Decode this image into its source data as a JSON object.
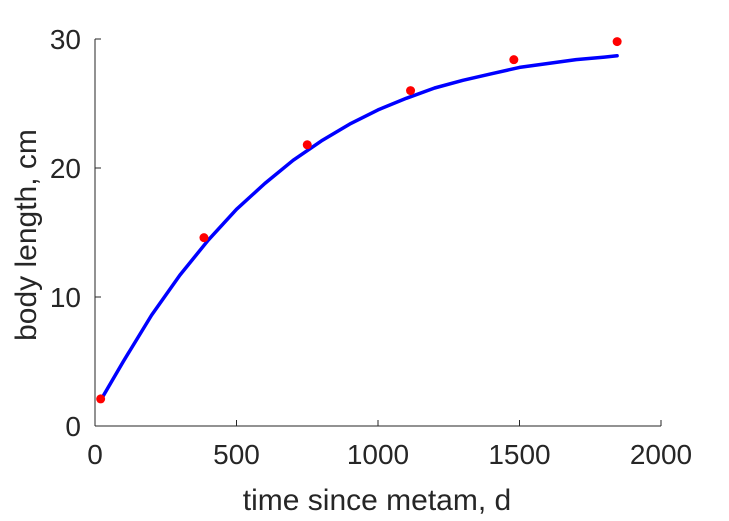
{
  "chart_data": {
    "type": "scatter",
    "xlabel": "time since metam, d",
    "ylabel": "body length, cm",
    "xlim": [
      0,
      2000
    ],
    "ylim": [
      0,
      30
    ],
    "xticks": [
      0,
      500,
      1000,
      1500,
      2000
    ],
    "yticks": [
      0,
      10,
      20,
      30
    ],
    "grid": false,
    "series": [
      {
        "kind": "points",
        "color": "#ff0000",
        "points": [
          {
            "x": 20,
            "y": 2.1
          },
          {
            "x": 385,
            "y": 14.6
          },
          {
            "x": 750,
            "y": 21.8
          },
          {
            "x": 1115,
            "y": 26.0
          },
          {
            "x": 1480,
            "y": 28.4
          },
          {
            "x": 1845,
            "y": 29.8
          }
        ]
      },
      {
        "kind": "line",
        "color": "#0000ff",
        "points": [
          {
            "x": 20,
            "y": 2.0
          },
          {
            "x": 100,
            "y": 5.0
          },
          {
            "x": 200,
            "y": 8.6
          },
          {
            "x": 300,
            "y": 11.7
          },
          {
            "x": 400,
            "y": 14.4
          },
          {
            "x": 500,
            "y": 16.8
          },
          {
            "x": 600,
            "y": 18.8
          },
          {
            "x": 700,
            "y": 20.6
          },
          {
            "x": 800,
            "y": 22.1
          },
          {
            "x": 900,
            "y": 23.4
          },
          {
            "x": 1000,
            "y": 24.5
          },
          {
            "x": 1100,
            "y": 25.4
          },
          {
            "x": 1200,
            "y": 26.2
          },
          {
            "x": 1300,
            "y": 26.8
          },
          {
            "x": 1400,
            "y": 27.3
          },
          {
            "x": 1500,
            "y": 27.8
          },
          {
            "x": 1600,
            "y": 28.1
          },
          {
            "x": 1700,
            "y": 28.4
          },
          {
            "x": 1800,
            "y": 28.6
          },
          {
            "x": 1845,
            "y": 28.7
          }
        ]
      }
    ]
  }
}
